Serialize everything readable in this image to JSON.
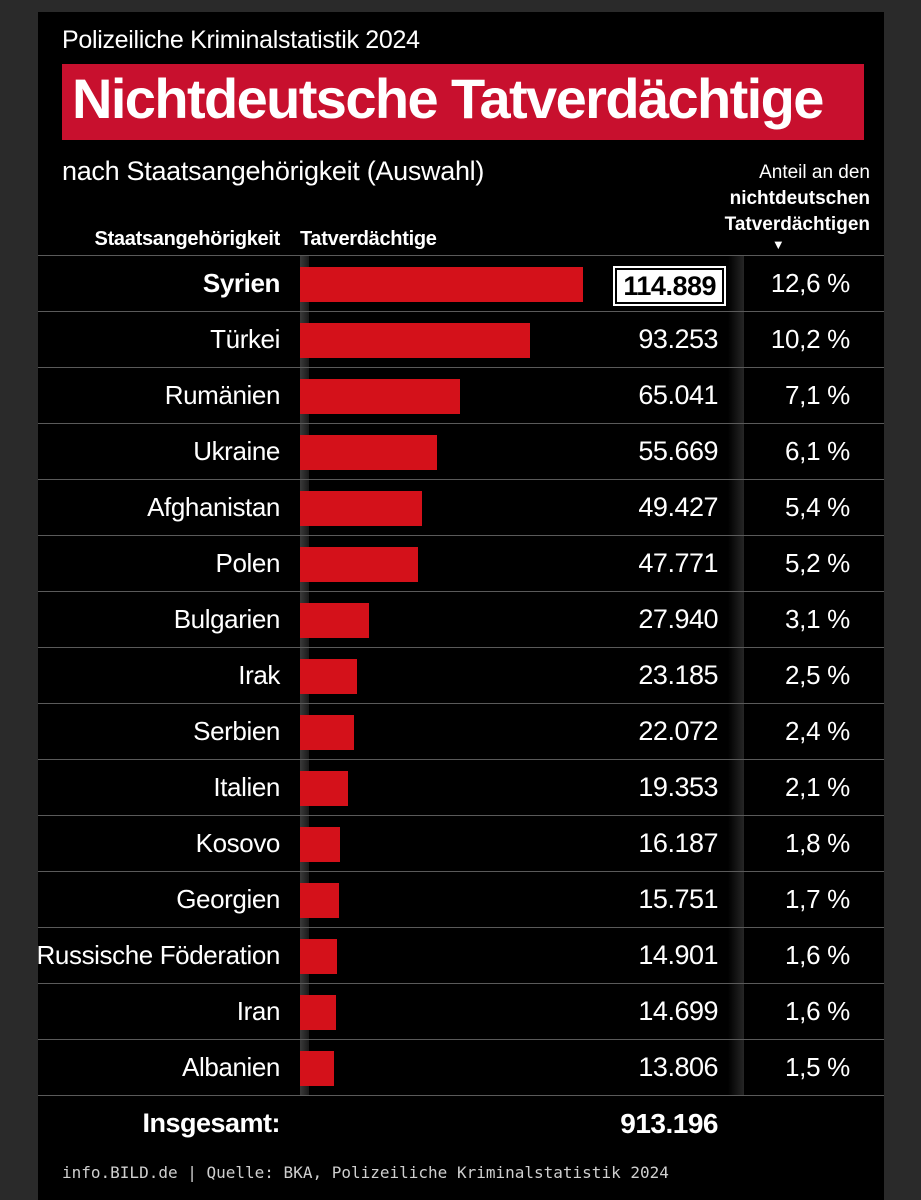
{
  "header": {
    "suptitle": "Polizeiliche Kriminalstatistik 2024",
    "title": "Nichtdeutsche Tatverdächtige",
    "subtitle": "nach Staatsangehörigkeit (Auswahl)",
    "share_header_line1": "Anteil an den",
    "share_header_line2": "nichtdeutschen",
    "share_header_line3": "Tatverdächtigen",
    "share_header_arrow": "▼",
    "col_country": "Staatsangehörigkeit",
    "col_suspects": "Tatverdächtige"
  },
  "colors": {
    "bar": "#d4111a",
    "title_bg": "#c8102e",
    "background": "#000000"
  },
  "chart_data": {
    "type": "bar",
    "orientation": "horizontal",
    "title": "Nichtdeutsche Tatverdächtige",
    "categories": [
      "Syrien",
      "Türkei",
      "Rumänien",
      "Ukraine",
      "Afghanistan",
      "Polen",
      "Bulgarien",
      "Irak",
      "Serbien",
      "Italien",
      "Kosovo",
      "Georgien",
      "Russische Föderation",
      "Iran",
      "Albanien"
    ],
    "values": [
      114889,
      93253,
      65041,
      55669,
      49427,
      47771,
      27940,
      23185,
      22072,
      19353,
      16187,
      15751,
      14901,
      14699,
      13806
    ],
    "value_labels": [
      "114.889",
      "93.253",
      "65.041",
      "55.669",
      "49.427",
      "47.771",
      "27.940",
      "23.185",
      "22.072",
      "19.353",
      "16.187",
      "15.751",
      "14.901",
      "14.699",
      "13.806"
    ],
    "share_labels": [
      "12,6 %",
      "10,2 %",
      "7,1 %",
      "6,1 %",
      "5,4 %",
      "5,2 %",
      "3,1 %",
      "2,5 %",
      "2,4 %",
      "2,1 %",
      "1,8 %",
      "1,7 %",
      "1,6 %",
      "1,6 %",
      "1,5 %"
    ],
    "xlim": [
      0,
      138000
    ],
    "grid": false,
    "legend": "none"
  },
  "total": {
    "label": "Insgesamt:",
    "value": "913.196"
  },
  "footer": {
    "source": "info.BILD.de | Quelle: BKA, Polizeiliche Kriminalstatistik 2024"
  }
}
